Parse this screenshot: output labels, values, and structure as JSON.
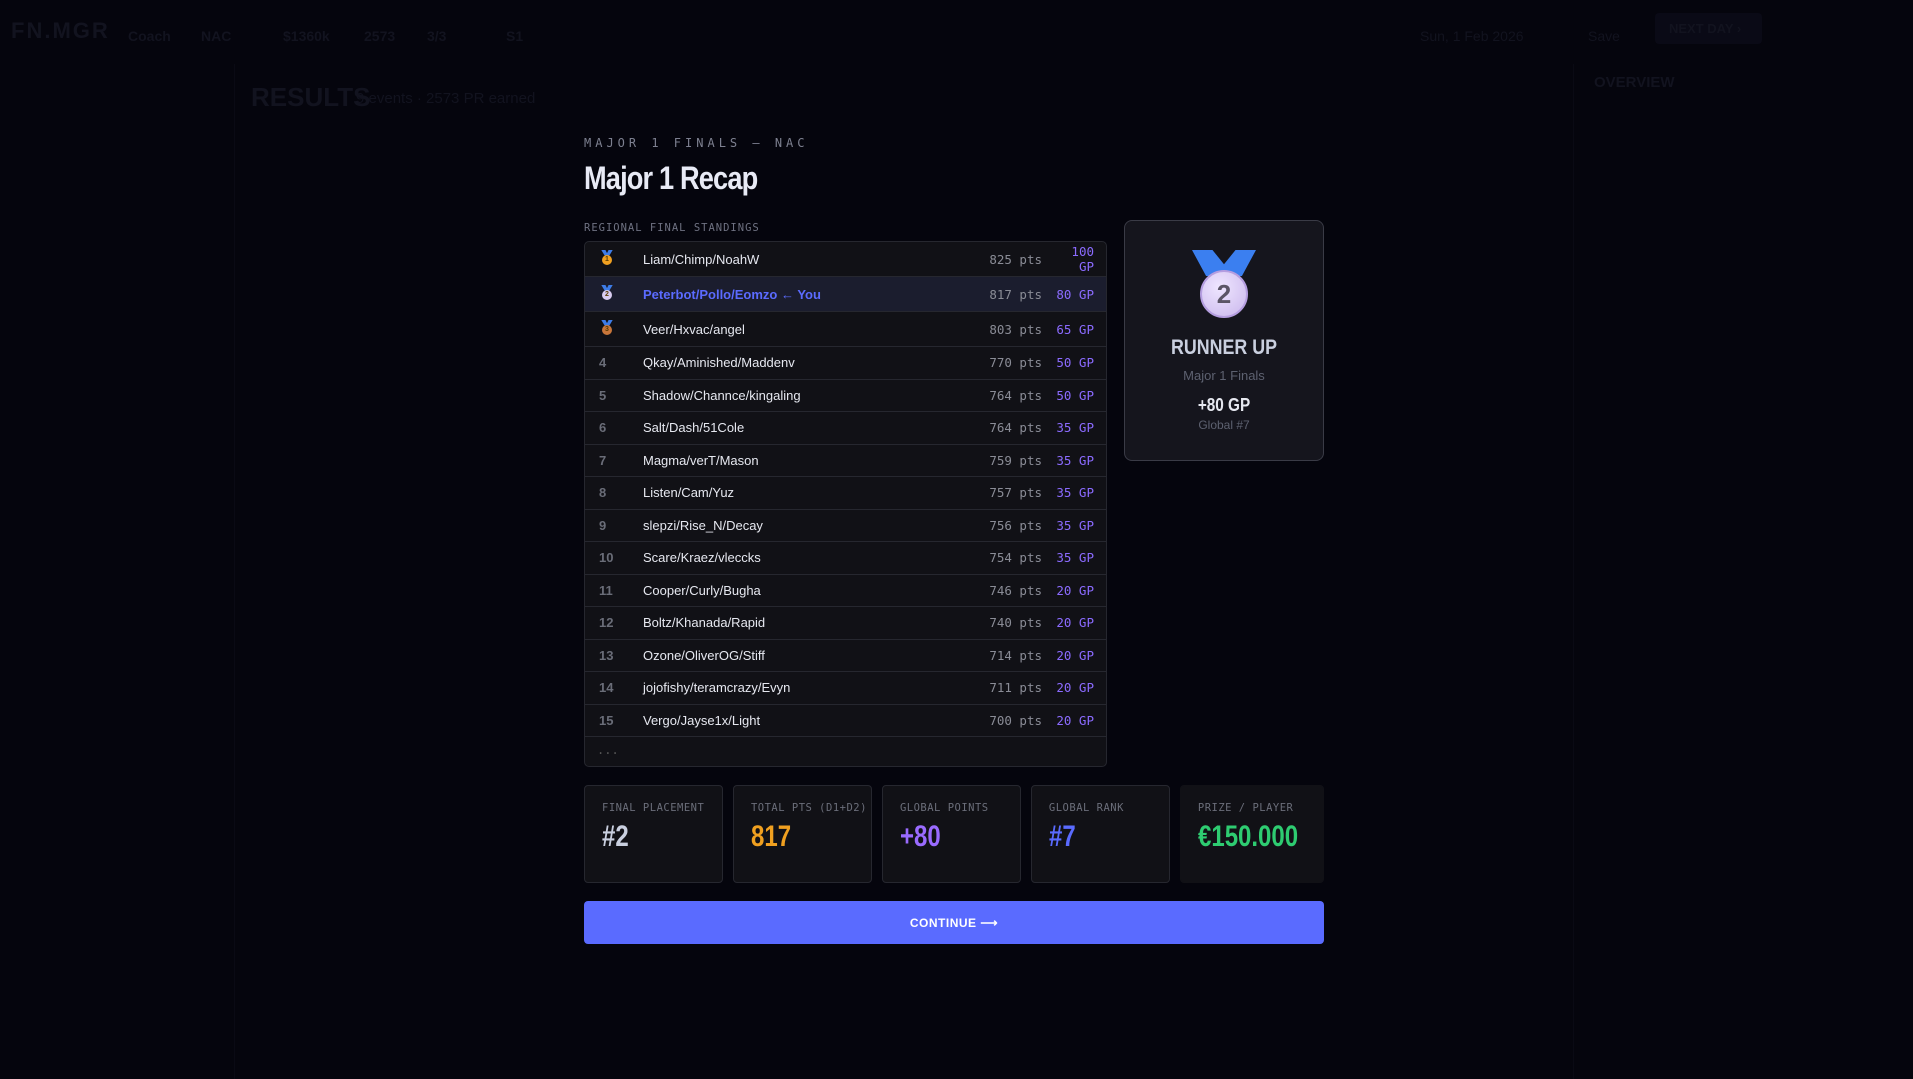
{
  "background": {
    "logo": "FN.MGR",
    "topbar": [
      "Coach",
      "NAC",
      "$1360k",
      "2573",
      "3/3",
      "S1"
    ],
    "date": "Sun, 1 Feb 2026",
    "save": "Save",
    "next_day": "NEXT DAY ›",
    "page_title": "RESULTS",
    "page_subtitle": "9 events · 2573 PR earned",
    "overview": "OVERVIEW"
  },
  "modal": {
    "eyebrow": "MAJOR 1 FINALS — NAC",
    "title": "Major 1 Recap",
    "standings_label": "REGIONAL FINAL STANDINGS",
    "standings": [
      {
        "rank": "1",
        "team": "Liam/Chimp/NoahW",
        "pts": "825 pts",
        "gp": "100 GP",
        "medal": "gold"
      },
      {
        "rank": "2",
        "team": "Peterbot/Pollo/Eomzo ← You",
        "pts": "817 pts",
        "gp": "80 GP",
        "medal": "silver"
      },
      {
        "rank": "3",
        "team": "Veer/Hxvac/angel",
        "pts": "803 pts",
        "gp": "65 GP",
        "medal": "bronze"
      },
      {
        "rank": "4",
        "team": "Qkay/Aminished/Maddenv",
        "pts": "770 pts",
        "gp": "50 GP"
      },
      {
        "rank": "5",
        "team": "Shadow/Channce/kingaling",
        "pts": "764 pts",
        "gp": "50 GP"
      },
      {
        "rank": "6",
        "team": "Salt/Dash/51Cole",
        "pts": "764 pts",
        "gp": "35 GP"
      },
      {
        "rank": "7",
        "team": "Magma/verT/Mason",
        "pts": "759 pts",
        "gp": "35 GP"
      },
      {
        "rank": "8",
        "team": "Listen/Cam/Yuz",
        "pts": "757 pts",
        "gp": "35 GP"
      },
      {
        "rank": "9",
        "team": "slepzi/Rise_N/Decay",
        "pts": "756 pts",
        "gp": "35 GP"
      },
      {
        "rank": "10",
        "team": "Scare/Kraez/vleccks",
        "pts": "754 pts",
        "gp": "35 GP"
      },
      {
        "rank": "11",
        "team": "Cooper/Curly/Bugha",
        "pts": "746 pts",
        "gp": "20 GP"
      },
      {
        "rank": "12",
        "team": "Boltz/Khanada/Rapid",
        "pts": "740 pts",
        "gp": "20 GP"
      },
      {
        "rank": "13",
        "team": "Ozone/OliverOG/Stiff",
        "pts": "714 pts",
        "gp": "20 GP"
      },
      {
        "rank": "14",
        "team": "jojofishy/teramcrazy/Evyn",
        "pts": "711 pts",
        "gp": "20 GP"
      },
      {
        "rank": "15",
        "team": "Vergo/Jayse1x/Light",
        "pts": "700 pts",
        "gp": "20 GP"
      }
    ],
    "more": "...",
    "card": {
      "medal_number": "2",
      "title": "RUNNER UP",
      "event": "Major 1 Finals",
      "gp": "+80 GP",
      "global": "Global #7"
    },
    "stats": [
      {
        "label": "FINAL PLACEMENT",
        "value": "#2",
        "color": "#c9cfdf"
      },
      {
        "label": "TOTAL PTS (D1+D2)",
        "value": "817",
        "color": "#f0a020"
      },
      {
        "label": "GLOBAL POINTS",
        "value": "+80",
        "color": "#9a6bff"
      },
      {
        "label": "GLOBAL RANK",
        "value": "#7",
        "color": "#5a6bff"
      },
      {
        "label": "PRIZE / PLAYER",
        "value": "€150.000",
        "color": "#2ecc71"
      }
    ],
    "continue": "CONTINUE ⟶",
    "colors": {
      "accent": "#5a6bff",
      "gp": "#8b6bff",
      "gold": "#f0a020",
      "silver": "#d8ccf0",
      "bronze": "#c8763a"
    }
  }
}
